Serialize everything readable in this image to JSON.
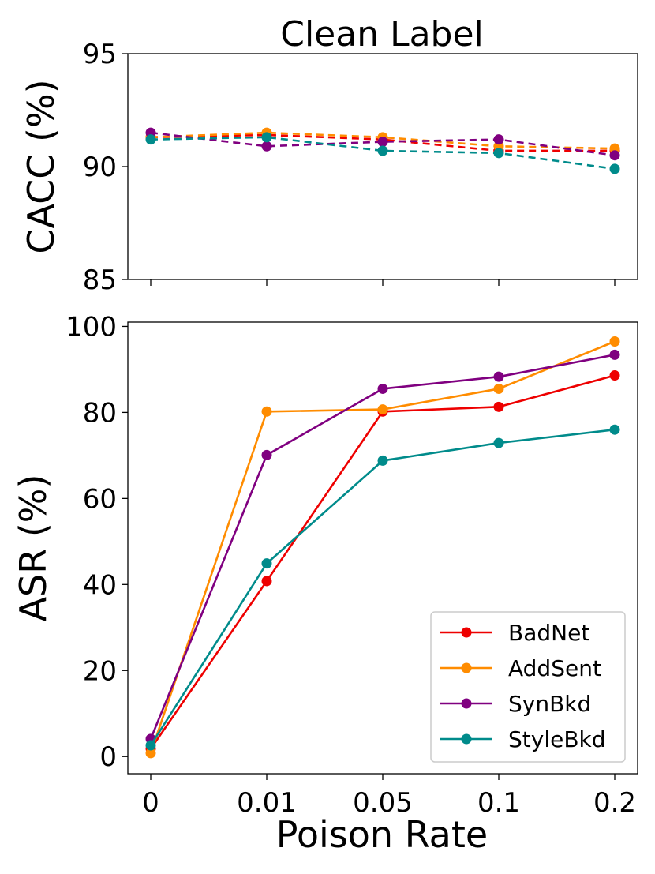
{
  "chart_data": {
    "type": "line",
    "title": "Clean Label",
    "xlabel": "Poison Rate",
    "categories": [
      "0",
      "0.01",
      "0.05",
      "0.1",
      "0.2"
    ],
    "colors": {
      "BadNet": "#ee0000",
      "AddSent": "#ff8c00",
      "SynBkd": "#800080",
      "StyleBkd": "#008b8b"
    },
    "panels": [
      {
        "id": "cacc",
        "ylabel": "CACC (%)",
        "ylim": [
          85,
          95
        ],
        "yticks": [
          85,
          90,
          95
        ],
        "line_style": "dashed",
        "series": [
          {
            "name": "BadNet",
            "values": [
              91.3,
              91.4,
              91.2,
              90.7,
              90.7
            ]
          },
          {
            "name": "AddSent",
            "values": [
              91.3,
              91.5,
              91.3,
              90.9,
              90.8
            ]
          },
          {
            "name": "SynBkd",
            "values": [
              91.5,
              90.9,
              91.1,
              91.2,
              90.5
            ]
          },
          {
            "name": "StyleBkd",
            "values": [
              91.2,
              91.3,
              90.7,
              90.6,
              89.9
            ]
          }
        ]
      },
      {
        "id": "asr",
        "ylabel": "ASR (%)",
        "ylim": [
          -4,
          101
        ],
        "yticks": [
          0,
          20,
          40,
          60,
          80,
          100
        ],
        "line_style": "solid",
        "series": [
          {
            "name": "BadNet",
            "values": [
              1.8,
              40.8,
              80.2,
              81.3,
              88.6
            ]
          },
          {
            "name": "AddSent",
            "values": [
              0.8,
              80.2,
              80.7,
              85.5,
              96.5
            ]
          },
          {
            "name": "SynBkd",
            "values": [
              4.1,
              70.1,
              85.5,
              88.3,
              93.4
            ]
          },
          {
            "name": "StyleBkd",
            "values": [
              2.6,
              44.9,
              68.8,
              72.9,
              76.0
            ]
          }
        ]
      }
    ],
    "legend": {
      "position": "lower-right",
      "entries": [
        "BadNet",
        "AddSent",
        "SynBkd",
        "StyleBkd"
      ]
    }
  }
}
